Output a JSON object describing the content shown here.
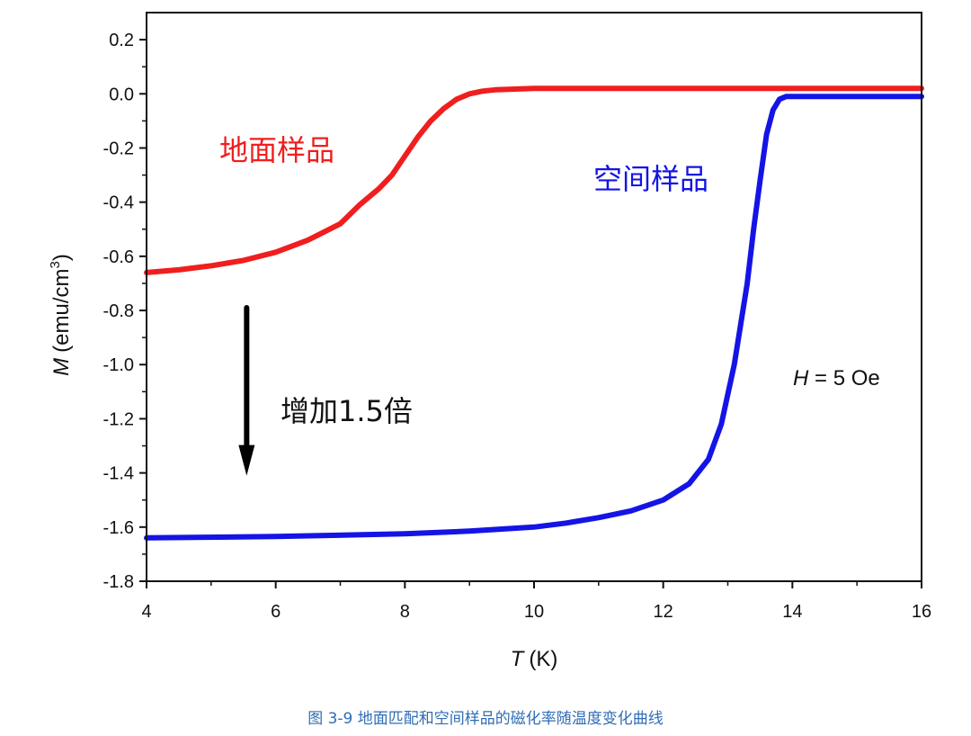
{
  "caption": "图 3-9 地面匹配和空间样品的磁化率随温度变化曲线",
  "chart_data": {
    "type": "line",
    "xlabel_symbol": "T",
    "xlabel_unit": "(K)",
    "ylabel_symbol": "M",
    "ylabel_unit": "(emu/cm",
    "ylabel_sup": "3",
    "ylabel_close": ")",
    "xlim": [
      4,
      16
    ],
    "ylim": [
      -1.8,
      0.3
    ],
    "x_ticks": [
      4,
      6,
      8,
      10,
      12,
      14,
      16
    ],
    "x_tick_labels": [
      "4",
      "6",
      "8",
      "10",
      "12",
      "14",
      "16"
    ],
    "y_ticks": [
      0.2,
      0.0,
      -0.2,
      -0.4,
      -0.6,
      -0.8,
      -1.0,
      -1.2,
      -1.4,
      -1.6,
      -1.8
    ],
    "y_tick_labels": [
      "0.2",
      "0.0",
      "-0.2",
      "-0.4",
      "-0.6",
      "-0.8",
      "-1.0",
      "-1.2",
      "-1.4",
      "-1.6",
      "-1.8"
    ],
    "grid": false,
    "series": [
      {
        "color": "#f01e1e",
        "x": [
          4.0,
          4.5,
          5.0,
          5.5,
          6.0,
          6.5,
          7.0,
          7.3,
          7.6,
          7.8,
          8.0,
          8.2,
          8.4,
          8.6,
          8.8,
          9.0,
          9.2,
          9.4,
          10.0,
          12.0,
          14.0,
          16.0
        ],
        "y": [
          -0.66,
          -0.65,
          -0.635,
          -0.615,
          -0.585,
          -0.54,
          -0.48,
          -0.41,
          -0.35,
          -0.3,
          -0.23,
          -0.16,
          -0.1,
          -0.055,
          -0.02,
          0.0,
          0.01,
          0.015,
          0.02,
          0.02,
          0.02,
          0.02
        ]
      },
      {
        "color": "#1414e6",
        "x": [
          4.0,
          6.0,
          8.0,
          9.0,
          10.0,
          10.5,
          11.0,
          11.5,
          12.0,
          12.4,
          12.7,
          12.9,
          13.1,
          13.3,
          13.4,
          13.5,
          13.6,
          13.7,
          13.8,
          13.9,
          14.0,
          14.2,
          14.5,
          16.0
        ],
        "y": [
          -1.64,
          -1.635,
          -1.625,
          -1.615,
          -1.6,
          -1.585,
          -1.565,
          -1.54,
          -1.5,
          -1.44,
          -1.35,
          -1.22,
          -1.0,
          -0.7,
          -0.5,
          -0.32,
          -0.15,
          -0.06,
          -0.02,
          -0.01,
          -0.01,
          -0.01,
          -0.01,
          -0.01
        ]
      }
    ],
    "annotations": [
      {
        "text": "地面样品",
        "color": "#f01e1e"
      },
      {
        "text": "空间样品",
        "color": "#1414e6"
      },
      {
        "text": "增加1.5倍",
        "color": "#111111"
      },
      {
        "field_symbol": "H",
        "field_value": " = 5 Oe",
        "color": "#111111"
      }
    ],
    "arrow": {
      "x": 5.55,
      "y_start": -0.79,
      "y_end": -1.41,
      "color": "#000000"
    }
  }
}
